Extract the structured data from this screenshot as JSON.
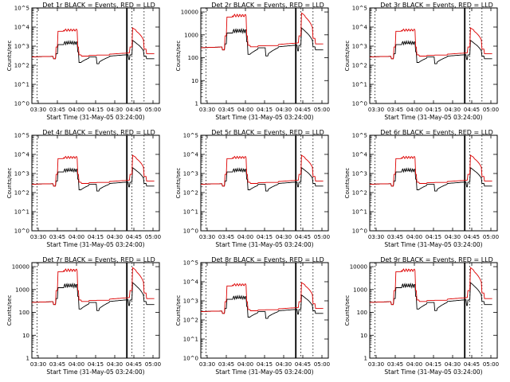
{
  "figure": {
    "background": "#ffffff",
    "axis_color": "#000000"
  },
  "chart_data": [
    {
      "type": "line",
      "title": "Det 1r BLACK = Events, RED = LLD",
      "xlabel": "Start Time (31-May-05 03:24:00)",
      "ylabel": "Counts/sec",
      "x_ticks": [
        "03:30",
        "03:45",
        "04:00",
        "04:15",
        "04:30",
        "04:45",
        "05:00"
      ],
      "y_scale": "log",
      "y_ticks": [
        "10^0",
        "10^1",
        "10^2",
        "10^3",
        "10^4",
        "10^5"
      ],
      "ylim": [
        1,
        100000
      ],
      "series": [
        {
          "color": "#000000",
          "values_desc": "events"
        },
        {
          "color": "#dd0000",
          "values_desc": "lld"
        }
      ]
    },
    {
      "type": "line",
      "title": "Det 2r BLACK = Events, RED = LLD",
      "xlabel": "Start Time (31-May-05 03:24:00)",
      "ylabel": "Counts/sec",
      "x_ticks": [
        "03:30",
        "03:45",
        "04:00",
        "04:15",
        "04:30",
        "04:45",
        "05:00"
      ],
      "y_scale": "log",
      "y_ticks": [
        "1",
        "10",
        "100",
        "1000",
        "10000"
      ],
      "ylim": [
        1,
        15000
      ]
    },
    {
      "type": "line",
      "title": "Det 3r BLACK = Events, RED = LLD",
      "xlabel": "Start Time (31-May-05 03:24:00)",
      "ylabel": "Counts/sec",
      "x_ticks": [
        "03:30",
        "03:45",
        "04:00",
        "04:15",
        "04:30",
        "04:45",
        "05:00"
      ],
      "y_scale": "log",
      "y_ticks": [
        "10^0",
        "10^1",
        "10^2",
        "10^3",
        "10^4",
        "10^5"
      ],
      "ylim": [
        1,
        100000
      ]
    },
    {
      "type": "line",
      "title": "Det 4r BLACK = Events, RED = LLD",
      "xlabel": "Start Time (31-May-05 03:24:00)",
      "ylabel": "Counts/sec",
      "x_ticks": [
        "03:30",
        "03:45",
        "04:00",
        "04:15",
        "04:30",
        "04:45",
        "05:00"
      ],
      "y_scale": "log",
      "y_ticks": [
        "10^0",
        "10^1",
        "10^2",
        "10^3",
        "10^4",
        "10^5"
      ],
      "ylim": [
        1,
        100000
      ]
    },
    {
      "type": "line",
      "title": "Det 5r BLACK = Events, RED = LLD",
      "xlabel": "Start Time (31-May-05 03:24:00)",
      "ylabel": "Counts/sec",
      "x_ticks": [
        "03:30",
        "03:45",
        "04:00",
        "04:15",
        "04:30",
        "04:45",
        "05:00"
      ],
      "y_scale": "log",
      "y_ticks": [
        "10^0",
        "10^1",
        "10^2",
        "10^3",
        "10^4",
        "10^5"
      ],
      "ylim": [
        1,
        100000
      ]
    },
    {
      "type": "line",
      "title": "Det 6r BLACK = Events, RED = LLD",
      "xlabel": "Start Time (31-May-05 03:24:00)",
      "ylabel": "Counts/sec",
      "x_ticks": [
        "03:30",
        "03:45",
        "04:00",
        "04:15",
        "04:30",
        "04:45",
        "05:00"
      ],
      "y_scale": "log",
      "y_ticks": [
        "10^0",
        "10^1",
        "10^2",
        "10^3",
        "10^4",
        "10^5"
      ],
      "ylim": [
        1,
        100000
      ]
    },
    {
      "type": "line",
      "title": "Det 7r BLACK = Events, RED = LLD",
      "xlabel": "Start Time (31-May-05 03:24:00)",
      "ylabel": "Counts/sec",
      "x_ticks": [
        "03:30",
        "03:45",
        "04:00",
        "04:15",
        "04:30",
        "04:45",
        "05:00"
      ],
      "y_scale": "log",
      "y_ticks": [
        "1",
        "10",
        "100",
        "1000",
        "10000"
      ],
      "ylim": [
        1,
        15000
      ]
    },
    {
      "type": "line",
      "title": "Det 8r BLACK = Events, RED = LLD",
      "xlabel": "Start Time (31-May-05 03:24:00)",
      "ylabel": "Counts/sec",
      "x_ticks": [
        "03:30",
        "03:45",
        "04:00",
        "04:15",
        "04:30",
        "04:45",
        "05:00"
      ],
      "y_scale": "log",
      "y_ticks": [
        "10^0",
        "10^1",
        "10^2",
        "10^3",
        "10^4",
        "10^5"
      ],
      "ylim": [
        1,
        100000
      ]
    },
    {
      "type": "line",
      "title": "Det 9r BLACK = Events, RED = LLD",
      "xlabel": "Start Time (31-May-05 03:24:00)",
      "ylabel": "Counts/sec",
      "x_ticks": [
        "03:30",
        "03:45",
        "04:00",
        "04:15",
        "04:30",
        "04:45",
        "05:00"
      ],
      "y_scale": "log",
      "y_ticks": [
        "1",
        "10",
        "100",
        "1000",
        "10000"
      ],
      "ylim": [
        1,
        15000
      ]
    }
  ]
}
